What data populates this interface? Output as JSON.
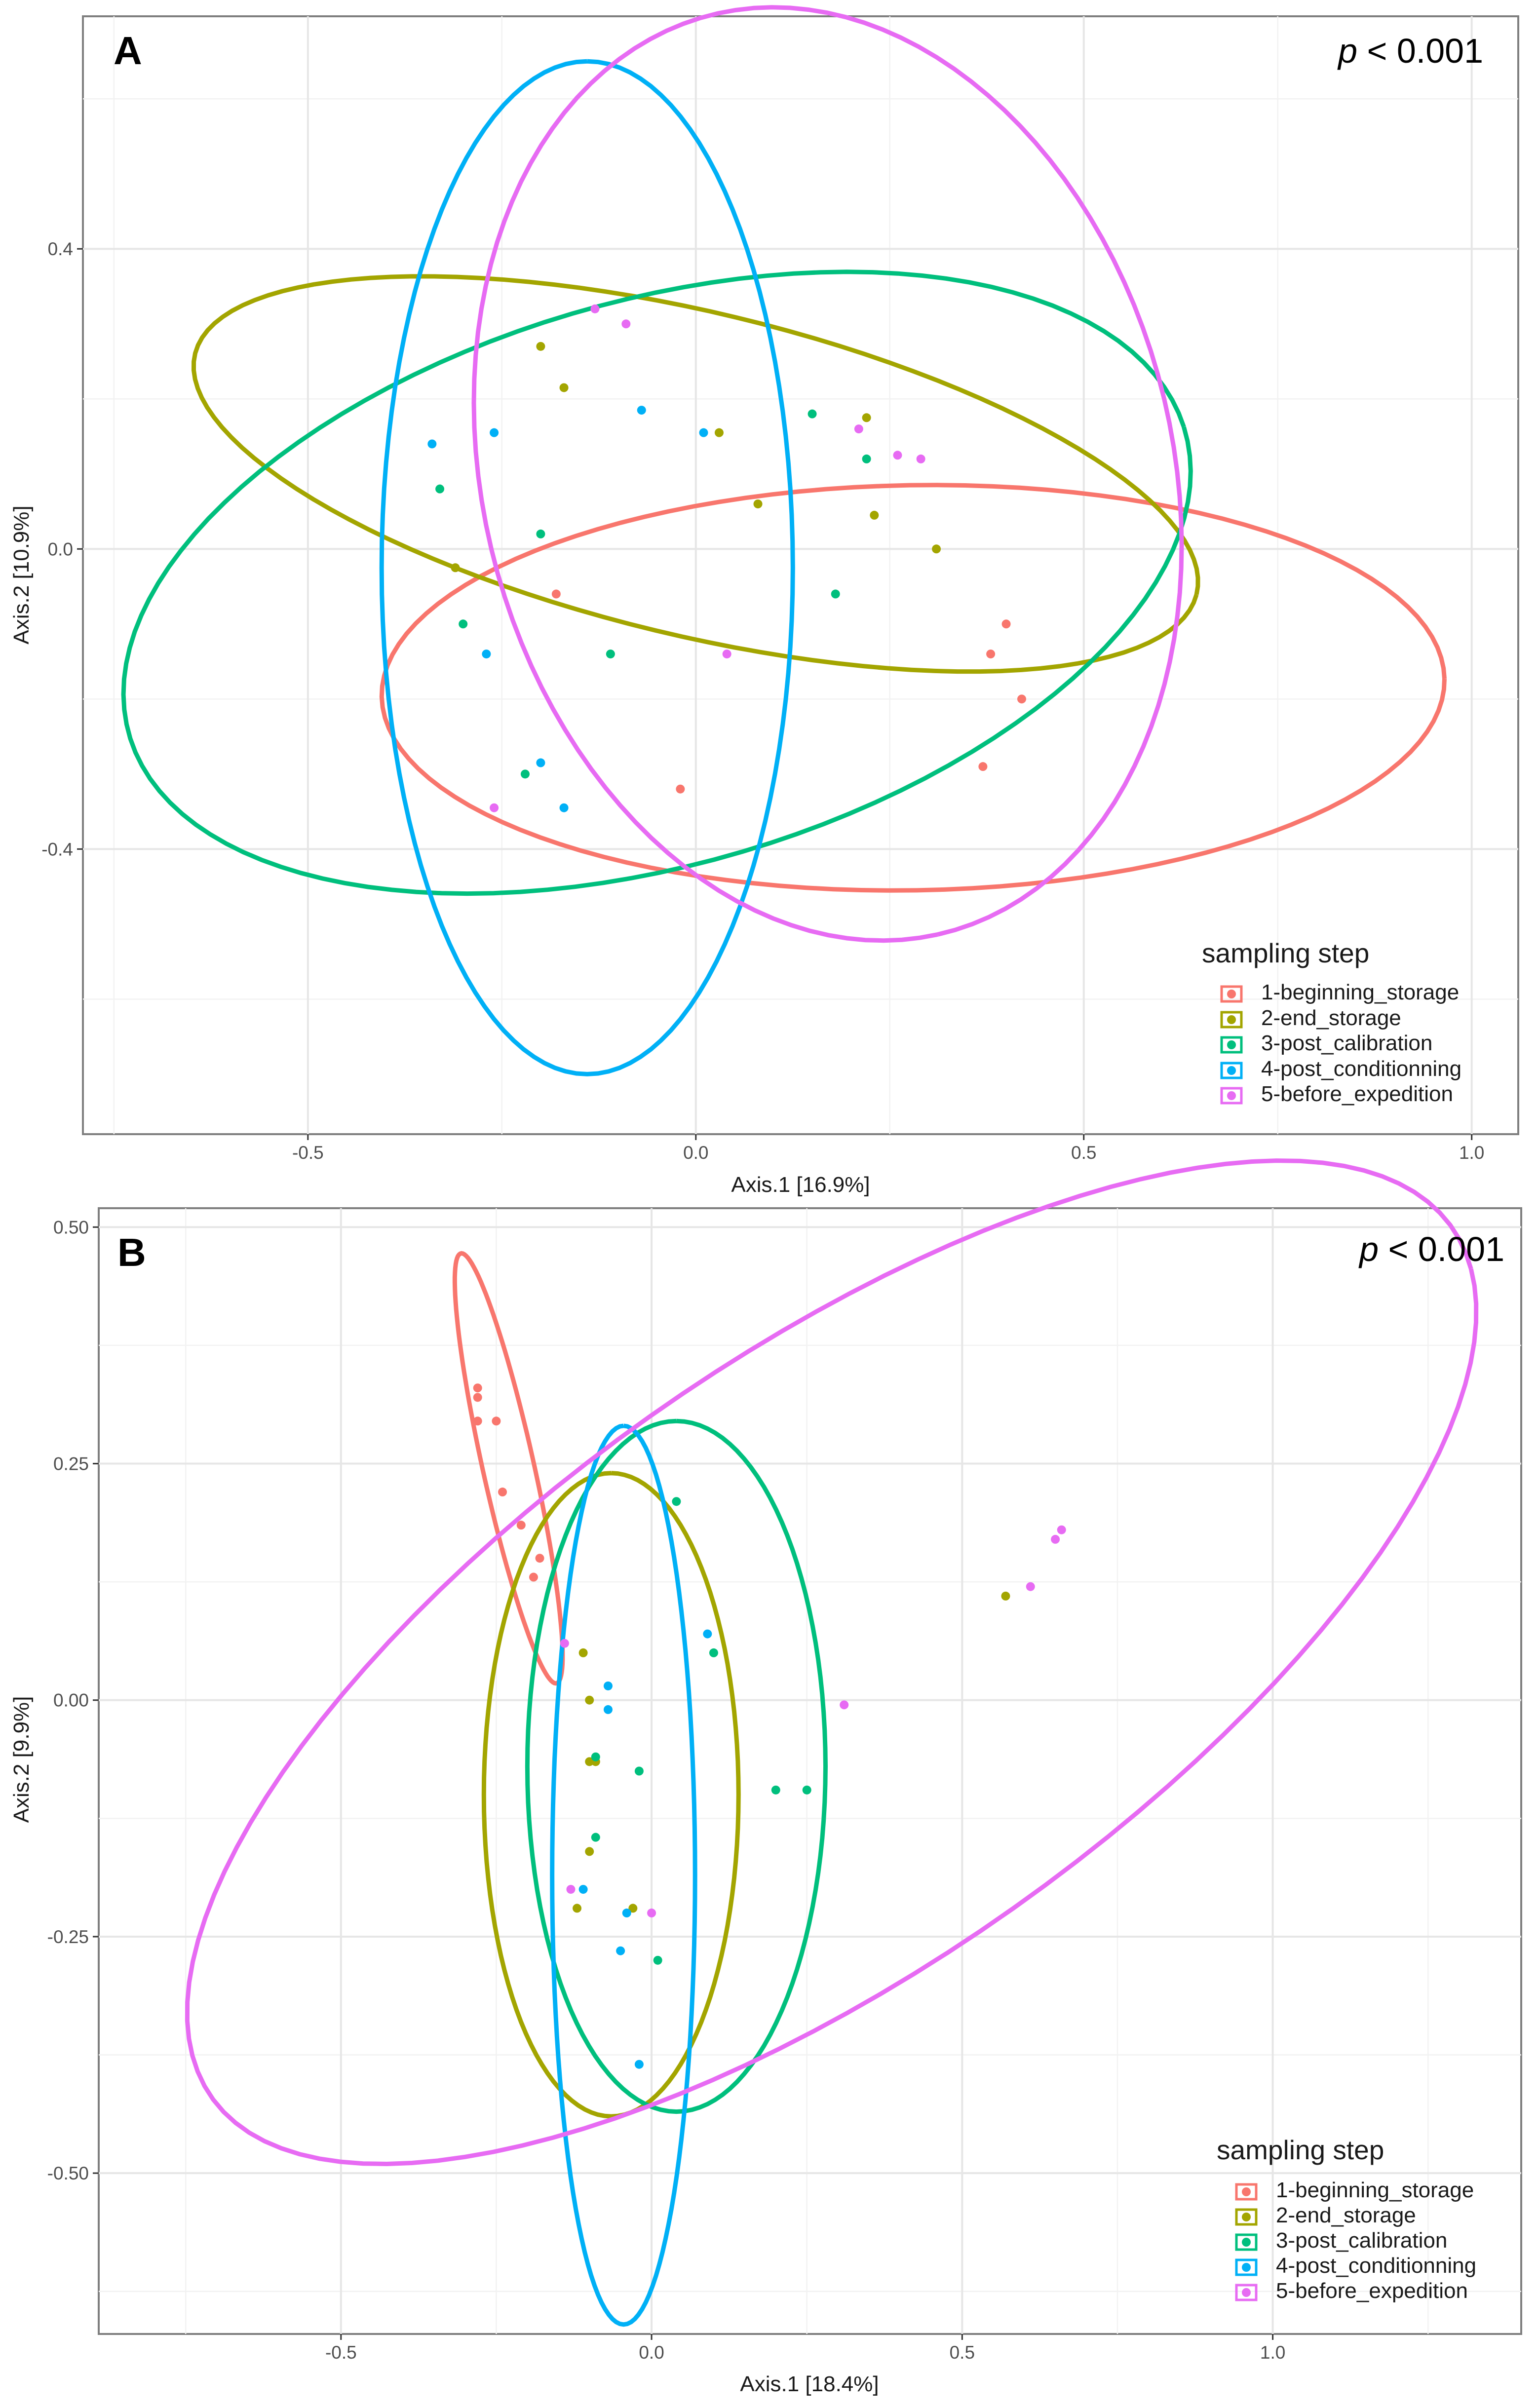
{
  "colors": {
    "1-beginning_storage": "#F8766D",
    "2-end_storage": "#A3A500",
    "3-post_calibration": "#00BF7D",
    "4-post_conditionning": "#00B0F6",
    "5-before_expedition": "#E76BF3"
  },
  "chart_data": [
    {
      "type": "scatter",
      "panel_label": "A",
      "annotation": {
        "italic": "p",
        "rest": " < 0.001"
      },
      "xlabel": "Axis.1   [16.9%]",
      "ylabel": "Axis.2   [10.9%]",
      "xlim": [
        -0.79,
        1.06
      ],
      "ylim": [
        -0.78,
        0.71
      ],
      "xticks": [
        -0.5,
        0.0,
        0.5,
        1.0
      ],
      "xtick_labels": [
        "-0.5",
        "0.0",
        "0.5",
        "1.0"
      ],
      "yticks": [
        -0.4,
        0.0,
        0.4
      ],
      "ytick_labels": [
        "-0.4",
        "0.0",
        "0.4"
      ],
      "legend": {
        "title": "sampling step",
        "entries": [
          "1-beginning_storage",
          "2-end_storage",
          "3-post_calibration",
          "4-post_conditionning",
          "5-before_expedition"
        ]
      },
      "series": [
        {
          "name": "1-beginning_storage",
          "points": [
            [
              -0.18,
              -0.06
            ],
            [
              -0.02,
              -0.32
            ],
            [
              0.37,
              -0.29
            ],
            [
              0.38,
              -0.14
            ],
            [
              0.4,
              -0.1
            ],
            [
              0.42,
              -0.2
            ]
          ],
          "ellipse": {
            "cx": 0.28,
            "cy": -0.185,
            "rx": 0.685,
            "ry": 0.27,
            "angle": 1
          }
        },
        {
          "name": "2-end_storage",
          "points": [
            [
              -0.31,
              -0.025
            ],
            [
              -0.2,
              0.27
            ],
            [
              -0.17,
              0.215
            ],
            [
              0.03,
              0.155
            ],
            [
              0.08,
              0.06
            ],
            [
              0.22,
              0.175
            ],
            [
              0.23,
              0.045
            ],
            [
              0.31,
              0.0
            ]
          ],
          "ellipse": {
            "cx": 0.0,
            "cy": 0.1,
            "rx": 0.665,
            "ry": 0.215,
            "angle": -14
          }
        },
        {
          "name": "3-post_calibration",
          "points": [
            [
              -0.33,
              0.08
            ],
            [
              -0.3,
              -0.1
            ],
            [
              -0.2,
              0.02
            ],
            [
              -0.11,
              -0.14
            ],
            [
              -0.22,
              -0.3
            ],
            [
              0.15,
              0.18
            ],
            [
              0.18,
              -0.06
            ],
            [
              0.22,
              0.12
            ]
          ],
          "ellipse": {
            "cx": -0.05,
            "cy": -0.045,
            "rx": 0.71,
            "ry": 0.375,
            "angle": 17
          }
        },
        {
          "name": "4-post_conditionning",
          "points": [
            [
              -0.34,
              0.14
            ],
            [
              -0.26,
              0.155
            ],
            [
              -0.27,
              -0.14
            ],
            [
              -0.07,
              0.185
            ],
            [
              0.01,
              0.155
            ],
            [
              -0.17,
              -0.345
            ],
            [
              -0.2,
              -0.285
            ]
          ],
          "ellipse": {
            "cx": -0.14,
            "cy": -0.025,
            "rx": 0.675,
            "ry": 0.265,
            "angle": 90
          }
        },
        {
          "name": "5-before_expedition",
          "points": [
            [
              -0.13,
              0.32
            ],
            [
              -0.09,
              0.3
            ],
            [
              0.04,
              -0.14
            ],
            [
              -0.26,
              -0.345
            ],
            [
              0.21,
              0.16
            ],
            [
              0.26,
              0.125
            ],
            [
              0.29,
              0.12
            ]
          ],
          "ellipse": {
            "cx": 0.17,
            "cy": 0.1,
            "rx": 0.63,
            "ry": 0.445,
            "angle": -77
          }
        }
      ]
    },
    {
      "type": "scatter",
      "panel_label": "B",
      "annotation": {
        "italic": "p",
        "rest": " < 0.001"
      },
      "xlabel": "Axis.1   [18.4%]",
      "ylabel": "Axis.2   [9.9%]",
      "xlim": [
        -0.89,
        1.4
      ],
      "ylim": [
        -0.67,
        0.52
      ],
      "xticks": [
        -0.5,
        0.0,
        0.5,
        1.0
      ],
      "xtick_labels": [
        "-0.5",
        "0.0",
        "0.5",
        "1.0"
      ],
      "yticks": [
        -0.5,
        -0.25,
        0.0,
        0.25,
        0.5
      ],
      "ytick_labels": [
        "-0.50",
        "-0.25",
        "0.00",
        "0.25",
        "0.50"
      ],
      "legend": {
        "title": "sampling step",
        "entries": [
          "1-beginning_storage",
          "2-end_storage",
          "3-post_calibration",
          "4-post_conditionning",
          "5-before_expedition"
        ]
      },
      "series": [
        {
          "name": "1-beginning_storage",
          "points": [
            [
              -0.28,
              0.33
            ],
            [
              -0.28,
              0.32
            ],
            [
              -0.28,
              0.295
            ],
            [
              -0.25,
              0.295
            ],
            [
              -0.24,
              0.22
            ],
            [
              -0.21,
              0.185
            ],
            [
              -0.19,
              0.13
            ],
            [
              -0.18,
              0.15
            ]
          ],
          "ellipse": {
            "cx": -0.23,
            "cy": 0.245,
            "rx": 0.24,
            "ry": 0.04,
            "angle": -71
          }
        },
        {
          "name": "2-end_storage",
          "points": [
            [
              -0.11,
              0.05
            ],
            [
              -0.1,
              0.0
            ],
            [
              -0.1,
              -0.065
            ],
            [
              -0.09,
              -0.065
            ],
            [
              -0.1,
              -0.16
            ],
            [
              -0.12,
              -0.22
            ],
            [
              -0.03,
              -0.22
            ],
            [
              0.57,
              0.11
            ]
          ],
          "ellipse": {
            "cx": -0.065,
            "cy": -0.1,
            "rx": 0.34,
            "ry": 0.205,
            "angle": 90
          }
        },
        {
          "name": "3-post_calibration",
          "points": [
            [
              -0.09,
              -0.06
            ],
            [
              -0.09,
              -0.145
            ],
            [
              -0.02,
              -0.075
            ],
            [
              0.04,
              0.21
            ],
            [
              0.1,
              0.05
            ],
            [
              0.2,
              -0.095
            ],
            [
              0.25,
              -0.095
            ],
            [
              0.01,
              -0.275
            ]
          ],
          "ellipse": {
            "cx": 0.04,
            "cy": -0.07,
            "rx": 0.365,
            "ry": 0.24,
            "angle": 90
          }
        },
        {
          "name": "4-post_conditionning",
          "points": [
            [
              -0.07,
              0.015
            ],
            [
              -0.07,
              -0.01
            ],
            [
              0.09,
              0.07
            ],
            [
              -0.11,
              -0.2
            ],
            [
              -0.04,
              -0.225
            ],
            [
              -0.05,
              -0.265
            ],
            [
              -0.02,
              -0.385
            ]
          ],
          "ellipse": {
            "cx": -0.045,
            "cy": -0.185,
            "rx": 0.475,
            "ry": 0.115,
            "angle": 90
          }
        },
        {
          "name": "5-before_expedition",
          "points": [
            [
              -0.14,
              0.06
            ],
            [
              -0.13,
              -0.2
            ],
            [
              0.0,
              -0.225
            ],
            [
              0.31,
              -0.005
            ],
            [
              0.61,
              0.12
            ],
            [
              0.65,
              0.17
            ],
            [
              0.66,
              0.18
            ]
          ],
          "ellipse": {
            "cx": 0.29,
            "cy": 0.04,
            "rx": 1.11,
            "ry": 0.355,
            "angle": 22
          }
        }
      ]
    }
  ]
}
